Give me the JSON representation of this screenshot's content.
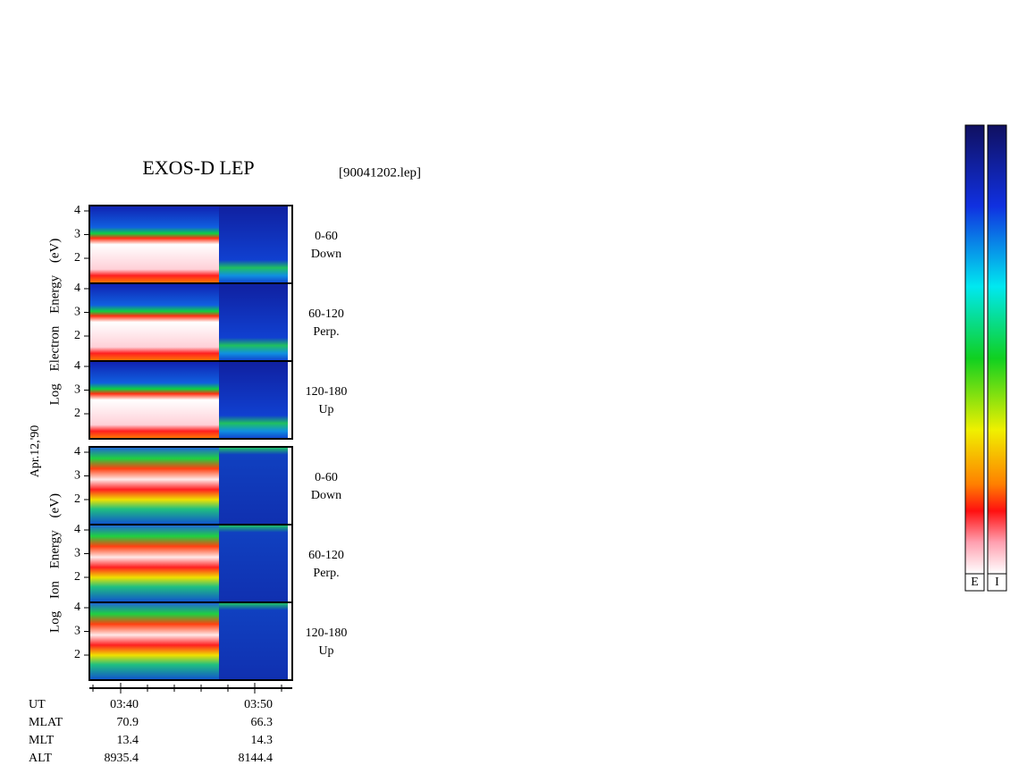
{
  "title": "EXOS-D LEP",
  "file": "[90041202.lep]",
  "date_label": "Apr.12,'90",
  "electron_axis_label": "Log Electron Energy (eV)",
  "ion_axis_label": "Log Ion Energy (eV)",
  "panels": [
    {
      "species": "electron",
      "yticks": [
        4,
        3,
        2
      ],
      "angle": "0-60",
      "direction": "Down"
    },
    {
      "species": "electron",
      "yticks": [
        4,
        3,
        2
      ],
      "angle": "60-120",
      "direction": "Perp."
    },
    {
      "species": "electron",
      "yticks": [
        4,
        3,
        2
      ],
      "angle": "120-180",
      "direction": "Up"
    },
    {
      "species": "ion",
      "yticks": [
        4,
        3,
        2
      ],
      "angle": "0-60",
      "direction": "Down"
    },
    {
      "species": "ion",
      "yticks": [
        4,
        3,
        2
      ],
      "angle": "60-120",
      "direction": "Perp."
    },
    {
      "species": "ion",
      "yticks": [
        4,
        3,
        2
      ],
      "angle": "120-180",
      "direction": "Up"
    }
  ],
  "orbit_table": {
    "row_labels": [
      "UT",
      "MLAT",
      "MLT",
      "ALT"
    ],
    "columns": [
      [
        "03:40",
        "70.9",
        "13.4",
        "8935.4"
      ],
      [
        "03:50",
        "66.3",
        "14.3",
        "8144.4"
      ]
    ]
  },
  "colorbar_labels": [
    "E",
    "I"
  ]
}
